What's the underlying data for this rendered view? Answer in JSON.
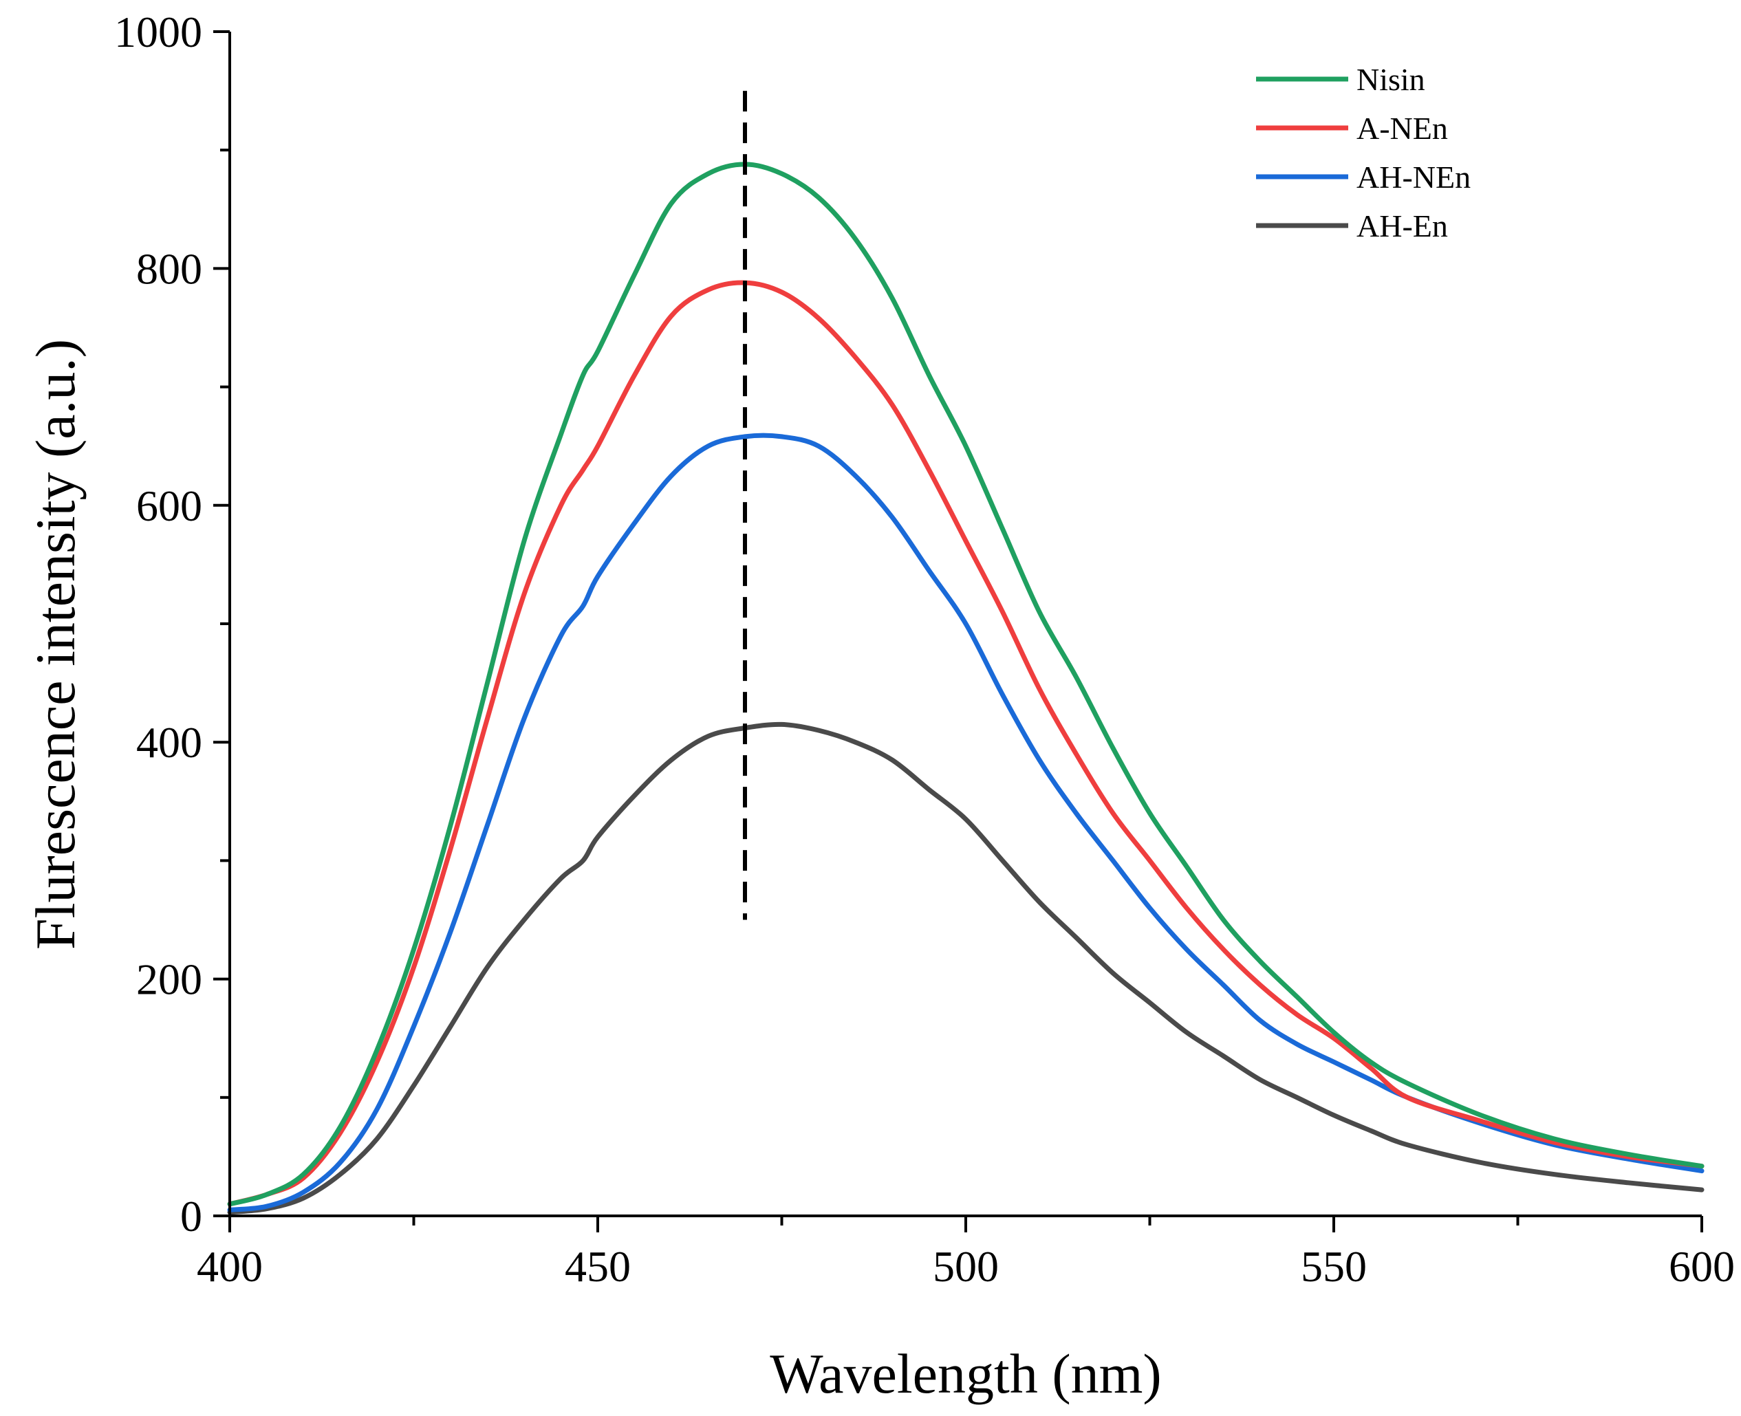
{
  "chart_data": {
    "type": "line",
    "title": "",
    "xlabel": "Wavelength (nm)",
    "ylabel": "Flurescence intensity (a.u.)",
    "xlim": [
      400,
      600
    ],
    "ylim": [
      0,
      1000
    ],
    "xticks": [
      400,
      450,
      500,
      550,
      600
    ],
    "yticks": [
      0,
      200,
      400,
      600,
      800,
      1000
    ],
    "x_minor_step": 25,
    "y_minor_step": 100,
    "grid": false,
    "legend_position": "top-right",
    "reference_line": {
      "x": 470,
      "y_range": [
        250,
        950
      ],
      "style": "dashed"
    },
    "series": [
      {
        "name": "Nisin",
        "color": "#1fa060",
        "x": [
          400,
          405,
          410,
          415,
          420,
          425,
          430,
          435,
          440,
          445,
          448,
          450,
          455,
          460,
          465,
          470,
          475,
          480,
          485,
          490,
          495,
          500,
          505,
          510,
          515,
          520,
          525,
          530,
          535,
          540,
          545,
          550,
          555,
          560,
          570,
          580,
          590,
          600
        ],
        "values": [
          10,
          18,
          35,
          75,
          140,
          225,
          330,
          450,
          570,
          660,
          710,
          730,
          795,
          855,
          880,
          888,
          880,
          860,
          825,
          775,
          710,
          650,
          580,
          510,
          455,
          395,
          340,
          295,
          250,
          215,
          185,
          155,
          130,
          112,
          85,
          65,
          52,
          42
        ]
      },
      {
        "name": "A-NEn",
        "color": "#ef3e3e",
        "x": [
          400,
          405,
          410,
          415,
          420,
          425,
          430,
          435,
          440,
          445,
          448,
          450,
          455,
          460,
          465,
          470,
          475,
          480,
          485,
          490,
          495,
          500,
          505,
          510,
          515,
          520,
          525,
          530,
          535,
          540,
          545,
          550,
          555,
          560,
          570,
          580,
          590,
          600
        ],
        "values": [
          10,
          18,
          32,
          70,
          130,
          210,
          310,
          420,
          525,
          600,
          630,
          650,
          710,
          760,
          782,
          788,
          780,
          758,
          725,
          685,
          630,
          570,
          510,
          445,
          390,
          340,
          300,
          260,
          225,
          195,
          170,
          150,
          125,
          100,
          80,
          62,
          50,
          42
        ]
      },
      {
        "name": "AH-NEn",
        "color": "#1a6ad8",
        "x": [
          400,
          405,
          410,
          415,
          420,
          425,
          430,
          435,
          440,
          445,
          448,
          450,
          455,
          460,
          465,
          470,
          475,
          480,
          485,
          490,
          495,
          500,
          505,
          510,
          515,
          520,
          525,
          530,
          535,
          540,
          545,
          550,
          555,
          560,
          570,
          580,
          590,
          600
        ],
        "values": [
          5,
          8,
          20,
          45,
          90,
          160,
          240,
          330,
          420,
          490,
          515,
          540,
          585,
          625,
          650,
          658,
          658,
          650,
          625,
          590,
          545,
          500,
          440,
          385,
          340,
          300,
          260,
          225,
          195,
          165,
          145,
          130,
          115,
          100,
          78,
          60,
          48,
          38
        ]
      },
      {
        "name": "AH-En",
        "color": "#4a4a4a",
        "x": [
          400,
          405,
          410,
          415,
          420,
          425,
          430,
          435,
          440,
          445,
          448,
          450,
          455,
          460,
          465,
          470,
          475,
          480,
          485,
          490,
          495,
          500,
          505,
          510,
          515,
          520,
          525,
          530,
          535,
          540,
          545,
          550,
          555,
          560,
          570,
          580,
          590,
          600
        ],
        "values": [
          3,
          6,
          15,
          35,
          65,
          110,
          160,
          210,
          250,
          285,
          300,
          320,
          355,
          385,
          405,
          412,
          415,
          410,
          400,
          385,
          360,
          335,
          300,
          265,
          235,
          205,
          180,
          155,
          135,
          115,
          100,
          85,
          72,
          60,
          45,
          35,
          28,
          22
        ]
      }
    ]
  }
}
